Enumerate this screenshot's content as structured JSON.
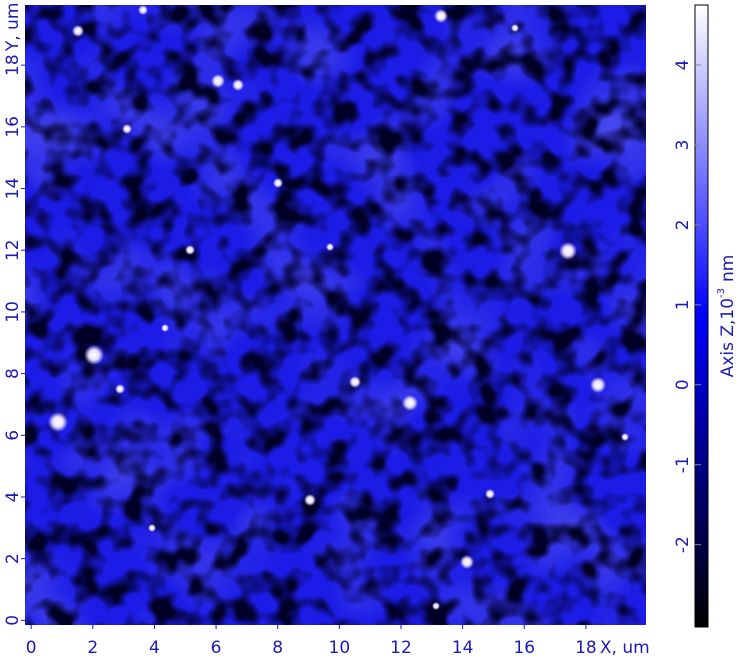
{
  "chart_data": {
    "type": "image",
    "x_label": "X, um",
    "y_label": "Y, um",
    "xlim": [
      -0.2,
      19.95
    ],
    "ylim": [
      -0.15,
      19.95
    ],
    "xticks": [
      0,
      2,
      4,
      6,
      8,
      10,
      12,
      14,
      16,
      18
    ],
    "yticks": [
      0,
      2,
      4,
      6,
      8,
      10,
      12,
      14,
      16,
      18
    ],
    "colorbar": {
      "label": "Axis Z,10",
      "label_exponent": "-3",
      "label_unit": "nm",
      "zlim": [
        -3.03,
        4.75
      ],
      "zticks": [
        -2,
        -1,
        0,
        1,
        2,
        3,
        4
      ],
      "colors": [
        "#000000",
        "#0000ff",
        "#ffffff"
      ]
    },
    "label_color": "#1c1cb4"
  }
}
